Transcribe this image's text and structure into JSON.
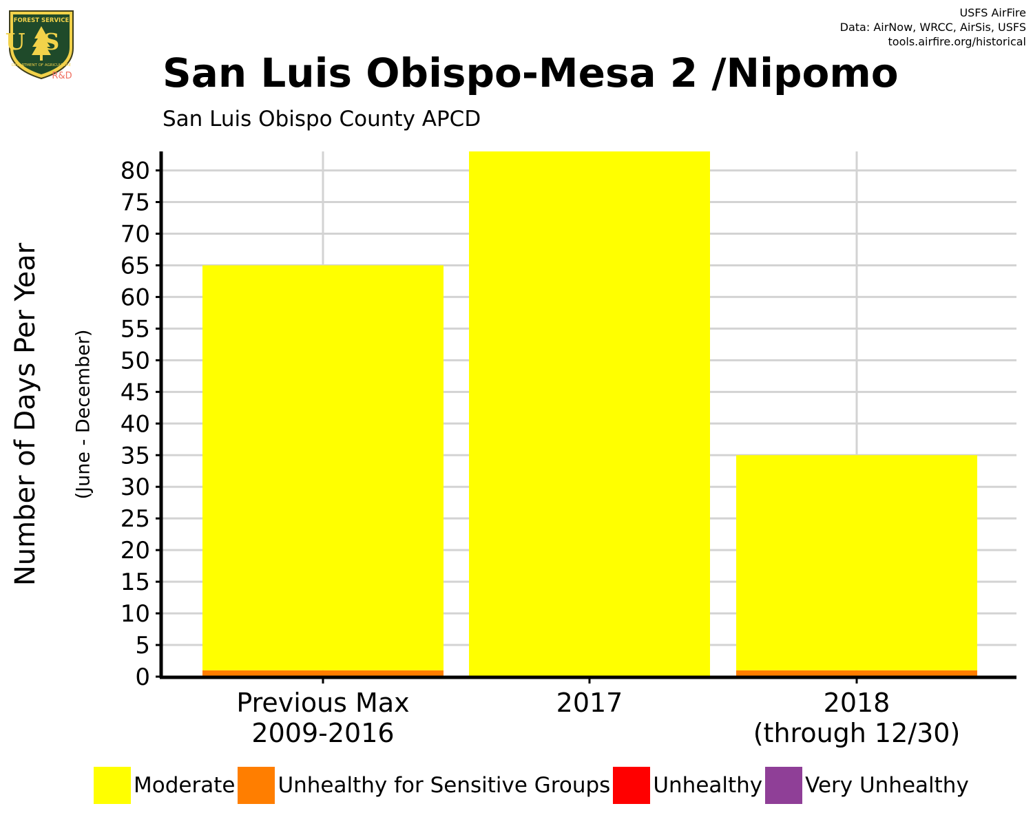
{
  "header": {
    "credits": [
      "USFS AirFire",
      "Data: AirNow, WRCC, AirSis, USFS",
      "tools.airfire.org/historical"
    ],
    "logo": {
      "top": "FOREST SERVICE",
      "letters": "US",
      "bottom": "DEPARTMENT OF AGRICULTURE",
      "tag": "R&D"
    },
    "title": "San Luis Obispo-Mesa 2 /Nipomo",
    "subtitle": "San Luis Obispo County APCD"
  },
  "chart_data": {
    "type": "bar",
    "stacked": true,
    "title": "San Luis Obispo-Mesa 2 /Nipomo",
    "subtitle": "San Luis Obispo County APCD",
    "ylabel": "Number of Days Per Year",
    "ysublabel": "(June - December)",
    "xlabel": "",
    "categories": [
      [
        "Previous Max",
        "2009-2016"
      ],
      [
        "2017"
      ],
      [
        "2018",
        "(through 12/30)"
      ]
    ],
    "ylim": [
      0,
      83
    ],
    "yticks": [
      0,
      5,
      10,
      15,
      20,
      25,
      30,
      35,
      40,
      45,
      50,
      55,
      60,
      65,
      70,
      75,
      80
    ],
    "grid": true,
    "legend_position": "bottom",
    "series": [
      {
        "name": "Unhealthy for Sensitive Groups",
        "color": "#FF7E00",
        "values": [
          1,
          0,
          1
        ]
      },
      {
        "name": "Moderate",
        "color": "#FFFF00",
        "values": [
          64,
          83,
          34
        ]
      },
      {
        "name": "Unhealthy",
        "color": "#FF0000",
        "values": [
          0,
          0,
          0
        ]
      },
      {
        "name": "Very Unhealthy",
        "color": "#8F3F97",
        "values": [
          0,
          0,
          0
        ]
      }
    ]
  },
  "legend": [
    {
      "label": "Moderate",
      "color": "#FFFF00"
    },
    {
      "label": "Unhealthy for Sensitive Groups",
      "color": "#FF7E00"
    },
    {
      "label": "Unhealthy",
      "color": "#FF0000"
    },
    {
      "label": "Very Unhealthy",
      "color": "#8F3F97"
    }
  ]
}
